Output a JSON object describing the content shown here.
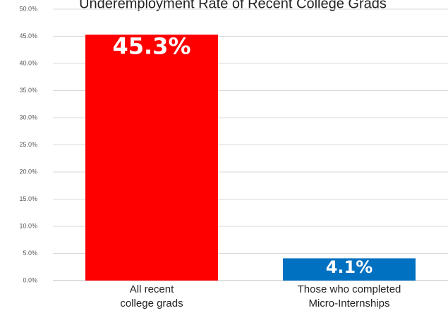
{
  "chart_data": {
    "type": "bar",
    "title": "Underemployment Rate of Recent College Grads",
    "categories": [
      [
        "All recent",
        "college grads"
      ],
      [
        "Those who completed",
        "Micro-Internships"
      ]
    ],
    "values": [
      45.3,
      4.1
    ],
    "data_labels": [
      "45.3%",
      "4.1%"
    ],
    "bar_colors": [
      "#ff0000",
      "#0070c0"
    ],
    "ylim": [
      0,
      50
    ],
    "yticks": [
      0,
      5,
      10,
      15,
      20,
      25,
      30,
      35,
      40,
      45,
      50
    ],
    "ytick_labels": [
      "0.0%",
      "5.0%",
      "10.0%",
      "15.0%",
      "20.0%",
      "25.0%",
      "30.0%",
      "35.0%",
      "40.0%",
      "45.0%",
      "50.0%"
    ],
    "grid": true,
    "gridline_color": "#d9d9d9",
    "xlabel": "",
    "ylabel": ""
  }
}
